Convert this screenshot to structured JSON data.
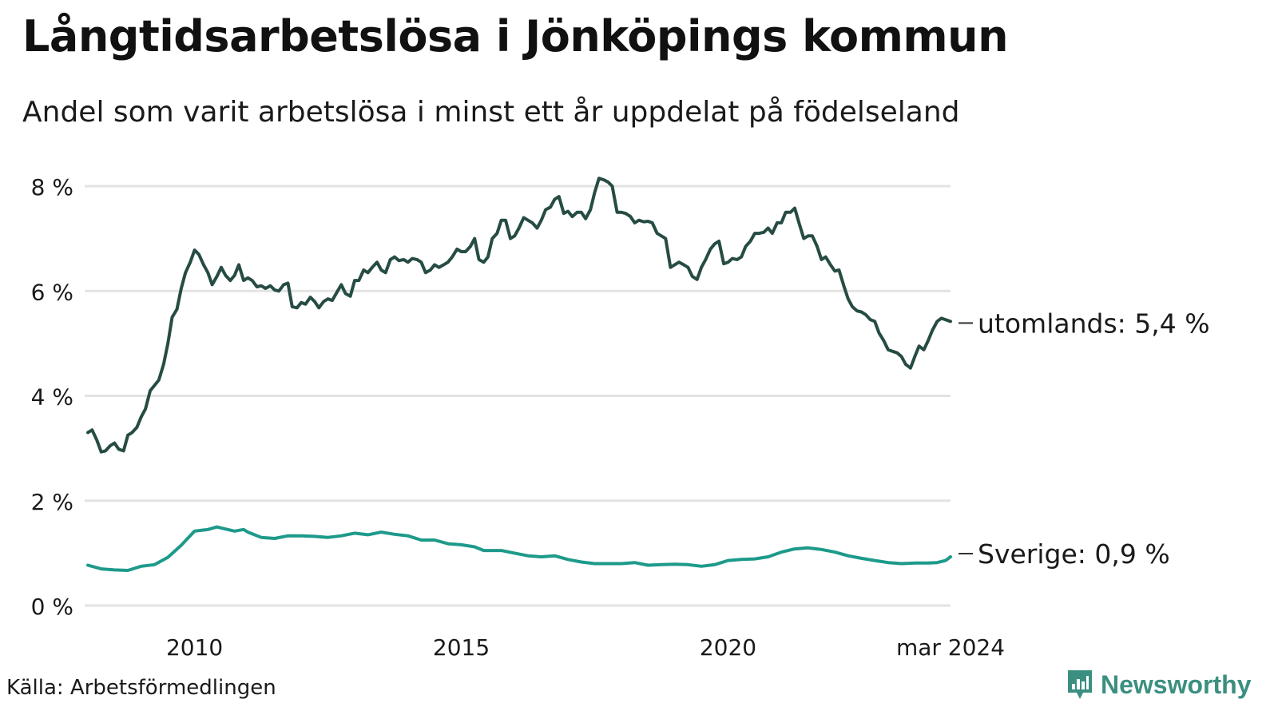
{
  "header": {
    "title": "Långtidsarbetslösa i Jönköpings kommun",
    "subtitle": "Andel som varit arbetslösa i minst ett år uppdelat på födelseland"
  },
  "footer": {
    "source": "Källa: Arbetsförmedlingen",
    "brand": "Newsworthy"
  },
  "colors": {
    "utomlands": "#264c44",
    "sverige": "#1d9a8a",
    "grid": "#e3e3e3",
    "brand": "#3b8f80"
  },
  "chart_data": {
    "type": "line",
    "title": "Långtidsarbetslösa i Jönköpings kommun",
    "subtitle": "Andel som varit arbetslösa i minst ett år uppdelat på födelseland",
    "xlabel": "",
    "ylabel": "",
    "ylim": [
      0,
      8
    ],
    "yticks": [
      {
        "value": 0,
        "label": "0 %"
      },
      {
        "value": 2,
        "label": "2 %"
      },
      {
        "value": 4,
        "label": "4 %"
      },
      {
        "value": 6,
        "label": "6 %"
      },
      {
        "value": 8,
        "label": "8 %"
      }
    ],
    "xlim": [
      2008.0,
      2024.17
    ],
    "xticks": [
      {
        "value": 2010.0,
        "label": "2010"
      },
      {
        "value": 2015.0,
        "label": "2015"
      },
      {
        "value": 2020.0,
        "label": "2020"
      },
      {
        "value": 2024.17,
        "label": "mar 2024"
      }
    ],
    "grid": true,
    "legend": "end-of-line labels",
    "series": [
      {
        "name": "utomlands",
        "end_label": "utomlands: 5,4 %",
        "points": [
          [
            2008.0,
            3.3
          ],
          [
            2008.08,
            3.35
          ],
          [
            2008.17,
            3.15
          ],
          [
            2008.25,
            2.93
          ],
          [
            2008.33,
            2.95
          ],
          [
            2008.42,
            3.05
          ],
          [
            2008.5,
            3.1
          ],
          [
            2008.58,
            2.98
          ],
          [
            2008.67,
            2.95
          ],
          [
            2008.75,
            3.25
          ],
          [
            2008.83,
            3.3
          ],
          [
            2008.92,
            3.4
          ],
          [
            2009.0,
            3.6
          ],
          [
            2009.08,
            3.75
          ],
          [
            2009.17,
            4.1
          ],
          [
            2009.25,
            4.2
          ],
          [
            2009.33,
            4.3
          ],
          [
            2009.42,
            4.6
          ],
          [
            2009.5,
            5.0
          ],
          [
            2009.58,
            5.5
          ],
          [
            2009.67,
            5.65
          ],
          [
            2009.75,
            6.05
          ],
          [
            2009.83,
            6.35
          ],
          [
            2009.92,
            6.55
          ],
          [
            2010.0,
            6.78
          ],
          [
            2010.08,
            6.7
          ],
          [
            2010.17,
            6.5
          ],
          [
            2010.25,
            6.35
          ],
          [
            2010.33,
            6.12
          ],
          [
            2010.42,
            6.28
          ],
          [
            2010.5,
            6.45
          ],
          [
            2010.58,
            6.3
          ],
          [
            2010.67,
            6.2
          ],
          [
            2010.75,
            6.3
          ],
          [
            2010.83,
            6.5
          ],
          [
            2010.92,
            6.2
          ],
          [
            2011.0,
            6.25
          ],
          [
            2011.08,
            6.2
          ],
          [
            2011.17,
            6.08
          ],
          [
            2011.25,
            6.1
          ],
          [
            2011.33,
            6.05
          ],
          [
            2011.42,
            6.1
          ],
          [
            2011.5,
            6.02
          ],
          [
            2011.58,
            6.0
          ],
          [
            2011.67,
            6.12
          ],
          [
            2011.75,
            6.15
          ],
          [
            2011.83,
            5.7
          ],
          [
            2011.92,
            5.68
          ],
          [
            2012.0,
            5.78
          ],
          [
            2012.08,
            5.75
          ],
          [
            2012.17,
            5.88
          ],
          [
            2012.25,
            5.8
          ],
          [
            2012.33,
            5.68
          ],
          [
            2012.42,
            5.8
          ],
          [
            2012.5,
            5.85
          ],
          [
            2012.58,
            5.82
          ],
          [
            2012.67,
            5.98
          ],
          [
            2012.75,
            6.12
          ],
          [
            2012.83,
            5.95
          ],
          [
            2012.92,
            5.9
          ],
          [
            2013.0,
            6.2
          ],
          [
            2013.08,
            6.2
          ],
          [
            2013.17,
            6.4
          ],
          [
            2013.25,
            6.35
          ],
          [
            2013.33,
            6.45
          ],
          [
            2013.42,
            6.55
          ],
          [
            2013.5,
            6.4
          ],
          [
            2013.58,
            6.35
          ],
          [
            2013.67,
            6.6
          ],
          [
            2013.75,
            6.65
          ],
          [
            2013.83,
            6.58
          ],
          [
            2013.92,
            6.6
          ],
          [
            2014.0,
            6.55
          ],
          [
            2014.08,
            6.62
          ],
          [
            2014.17,
            6.6
          ],
          [
            2014.25,
            6.55
          ],
          [
            2014.33,
            6.35
          ],
          [
            2014.42,
            6.4
          ],
          [
            2014.5,
            6.5
          ],
          [
            2014.58,
            6.45
          ],
          [
            2014.67,
            6.5
          ],
          [
            2014.75,
            6.55
          ],
          [
            2014.83,
            6.65
          ],
          [
            2014.92,
            6.8
          ],
          [
            2015.0,
            6.75
          ],
          [
            2015.08,
            6.75
          ],
          [
            2015.17,
            6.85
          ],
          [
            2015.25,
            7.0
          ],
          [
            2015.33,
            6.6
          ],
          [
            2015.42,
            6.55
          ],
          [
            2015.5,
            6.65
          ],
          [
            2015.58,
            7.0
          ],
          [
            2015.67,
            7.1
          ],
          [
            2015.75,
            7.35
          ],
          [
            2015.83,
            7.35
          ],
          [
            2015.92,
            7.0
          ],
          [
            2016.0,
            7.05
          ],
          [
            2016.08,
            7.2
          ],
          [
            2016.17,
            7.4
          ],
          [
            2016.25,
            7.35
          ],
          [
            2016.33,
            7.3
          ],
          [
            2016.42,
            7.2
          ],
          [
            2016.5,
            7.35
          ],
          [
            2016.58,
            7.55
          ],
          [
            2016.67,
            7.6
          ],
          [
            2016.75,
            7.75
          ],
          [
            2016.83,
            7.8
          ],
          [
            2016.92,
            7.48
          ],
          [
            2017.0,
            7.52
          ],
          [
            2017.08,
            7.42
          ],
          [
            2017.17,
            7.5
          ],
          [
            2017.25,
            7.5
          ],
          [
            2017.33,
            7.38
          ],
          [
            2017.42,
            7.55
          ],
          [
            2017.5,
            7.88
          ],
          [
            2017.58,
            8.15
          ],
          [
            2017.67,
            8.12
          ],
          [
            2017.75,
            8.08
          ],
          [
            2017.83,
            8.0
          ],
          [
            2017.92,
            7.5
          ],
          [
            2018.0,
            7.5
          ],
          [
            2018.08,
            7.48
          ],
          [
            2018.17,
            7.42
          ],
          [
            2018.25,
            7.3
          ],
          [
            2018.33,
            7.35
          ],
          [
            2018.42,
            7.32
          ],
          [
            2018.5,
            7.33
          ],
          [
            2018.58,
            7.3
          ],
          [
            2018.67,
            7.1
          ],
          [
            2018.75,
            7.05
          ],
          [
            2018.83,
            7.0
          ],
          [
            2018.92,
            6.45
          ],
          [
            2019.0,
            6.5
          ],
          [
            2019.08,
            6.55
          ],
          [
            2019.17,
            6.5
          ],
          [
            2019.25,
            6.45
          ],
          [
            2019.33,
            6.28
          ],
          [
            2019.42,
            6.22
          ],
          [
            2019.5,
            6.45
          ],
          [
            2019.58,
            6.6
          ],
          [
            2019.67,
            6.8
          ],
          [
            2019.75,
            6.9
          ],
          [
            2019.83,
            6.95
          ],
          [
            2019.92,
            6.52
          ],
          [
            2020.0,
            6.55
          ],
          [
            2020.08,
            6.62
          ],
          [
            2020.17,
            6.6
          ],
          [
            2020.25,
            6.65
          ],
          [
            2020.33,
            6.85
          ],
          [
            2020.42,
            6.95
          ],
          [
            2020.5,
            7.1
          ],
          [
            2020.58,
            7.1
          ],
          [
            2020.67,
            7.12
          ],
          [
            2020.75,
            7.2
          ],
          [
            2020.83,
            7.1
          ],
          [
            2020.92,
            7.3
          ],
          [
            2021.0,
            7.3
          ],
          [
            2021.08,
            7.5
          ],
          [
            2021.17,
            7.5
          ],
          [
            2021.25,
            7.58
          ],
          [
            2021.33,
            7.3
          ],
          [
            2021.42,
            7.0
          ],
          [
            2021.5,
            7.05
          ],
          [
            2021.58,
            7.05
          ],
          [
            2021.67,
            6.85
          ],
          [
            2021.75,
            6.6
          ],
          [
            2021.83,
            6.65
          ],
          [
            2021.92,
            6.5
          ],
          [
            2022.0,
            6.38
          ],
          [
            2022.08,
            6.4
          ],
          [
            2022.17,
            6.1
          ],
          [
            2022.25,
            5.85
          ],
          [
            2022.33,
            5.7
          ],
          [
            2022.42,
            5.62
          ],
          [
            2022.5,
            5.6
          ],
          [
            2022.58,
            5.55
          ],
          [
            2022.67,
            5.45
          ],
          [
            2022.75,
            5.42
          ],
          [
            2022.83,
            5.2
          ],
          [
            2022.92,
            5.05
          ],
          [
            2023.0,
            4.88
          ],
          [
            2023.08,
            4.85
          ],
          [
            2023.17,
            4.82
          ],
          [
            2023.25,
            4.75
          ],
          [
            2023.33,
            4.6
          ],
          [
            2023.42,
            4.53
          ],
          [
            2023.5,
            4.75
          ],
          [
            2023.58,
            4.95
          ],
          [
            2023.67,
            4.88
          ],
          [
            2023.75,
            5.05
          ],
          [
            2023.83,
            5.25
          ],
          [
            2023.92,
            5.42
          ],
          [
            2024.0,
            5.48
          ],
          [
            2024.08,
            5.45
          ],
          [
            2024.17,
            5.42
          ]
        ]
      },
      {
        "name": "Sverige",
        "end_label": "Sverige: 0,9 %",
        "points": [
          [
            2008.0,
            0.77
          ],
          [
            2008.25,
            0.7
          ],
          [
            2008.5,
            0.68
          ],
          [
            2008.75,
            0.67
          ],
          [
            2009.0,
            0.75
          ],
          [
            2009.25,
            0.78
          ],
          [
            2009.5,
            0.92
          ],
          [
            2009.75,
            1.15
          ],
          [
            2010.0,
            1.42
          ],
          [
            2010.25,
            1.45
          ],
          [
            2010.42,
            1.5
          ],
          [
            2010.58,
            1.46
          ],
          [
            2010.75,
            1.42
          ],
          [
            2010.92,
            1.45
          ],
          [
            2011.0,
            1.4
          ],
          [
            2011.25,
            1.3
          ],
          [
            2011.5,
            1.28
          ],
          [
            2011.75,
            1.33
          ],
          [
            2012.0,
            1.33
          ],
          [
            2012.25,
            1.32
          ],
          [
            2012.5,
            1.3
          ],
          [
            2012.75,
            1.33
          ],
          [
            2013.0,
            1.38
          ],
          [
            2013.25,
            1.35
          ],
          [
            2013.5,
            1.4
          ],
          [
            2013.75,
            1.36
          ],
          [
            2014.0,
            1.33
          ],
          [
            2014.25,
            1.25
          ],
          [
            2014.5,
            1.25
          ],
          [
            2014.75,
            1.18
          ],
          [
            2015.0,
            1.16
          ],
          [
            2015.25,
            1.12
          ],
          [
            2015.42,
            1.05
          ],
          [
            2015.75,
            1.05
          ],
          [
            2016.0,
            1.0
          ],
          [
            2016.25,
            0.95
          ],
          [
            2016.5,
            0.93
          ],
          [
            2016.75,
            0.95
          ],
          [
            2017.0,
            0.88
          ],
          [
            2017.25,
            0.83
          ],
          [
            2017.5,
            0.8
          ],
          [
            2017.75,
            0.8
          ],
          [
            2018.0,
            0.8
          ],
          [
            2018.25,
            0.82
          ],
          [
            2018.5,
            0.77
          ],
          [
            2018.75,
            0.78
          ],
          [
            2019.0,
            0.79
          ],
          [
            2019.25,
            0.78
          ],
          [
            2019.5,
            0.75
          ],
          [
            2019.75,
            0.78
          ],
          [
            2020.0,
            0.86
          ],
          [
            2020.25,
            0.88
          ],
          [
            2020.5,
            0.89
          ],
          [
            2020.75,
            0.93
          ],
          [
            2021.0,
            1.02
          ],
          [
            2021.25,
            1.08
          ],
          [
            2021.5,
            1.1
          ],
          [
            2021.75,
            1.07
          ],
          [
            2022.0,
            1.02
          ],
          [
            2022.25,
            0.95
          ],
          [
            2022.5,
            0.9
          ],
          [
            2022.75,
            0.86
          ],
          [
            2023.0,
            0.82
          ],
          [
            2023.25,
            0.8
          ],
          [
            2023.5,
            0.81
          ],
          [
            2023.75,
            0.81
          ],
          [
            2023.92,
            0.82
          ],
          [
            2024.08,
            0.86
          ],
          [
            2024.17,
            0.93
          ]
        ]
      }
    ]
  }
}
